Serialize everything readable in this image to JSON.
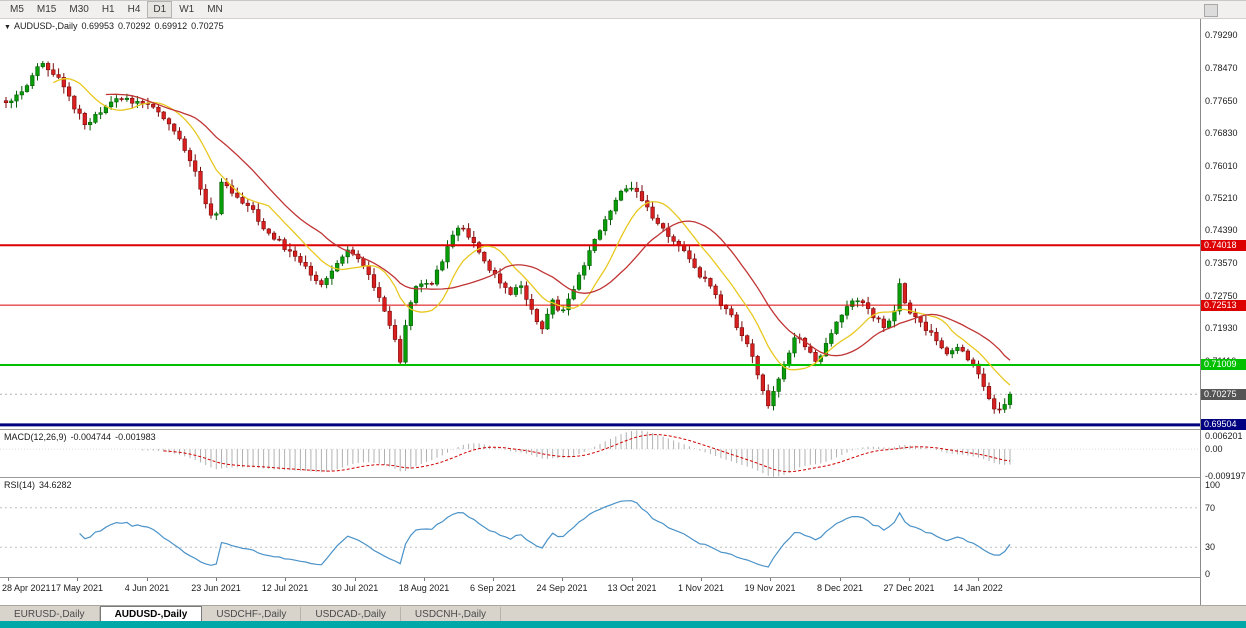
{
  "toolbar": {
    "timeframes": [
      "M5",
      "M15",
      "M30",
      "H1",
      "H4",
      "D1",
      "W1",
      "MN"
    ],
    "active_timeframe": "D1"
  },
  "header": {
    "dropdown_icon": "▼",
    "symbol": "AUDUSD-,Daily",
    "open": "0.69953",
    "high": "0.70292",
    "low": "0.69912",
    "close": "0.70275"
  },
  "indicators": {
    "macd": {
      "title": "MACD(12,26,9)",
      "value_main": "-0.004744",
      "value_signal": "-0.001983",
      "axis_labels": [
        {
          "text": "0.006201",
          "value": 0.006201
        },
        {
          "text": "0.00",
          "value": 0
        },
        {
          "text": "-0.009197",
          "value": -0.009197
        }
      ]
    },
    "rsi": {
      "title": "RSI(14)",
      "value": "34.6282",
      "axis_labels": [
        {
          "text": "100",
          "value": 100
        },
        {
          "text": "70",
          "value": 70
        },
        {
          "text": "30",
          "value": 30
        },
        {
          "text": "0",
          "value": 0
        }
      ],
      "levels": [
        70,
        30
      ]
    }
  },
  "price_axis": {
    "labels": [
      {
        "text": "0.79290",
        "value": 0.7929
      },
      {
        "text": "0.78470",
        "value": 0.7847
      },
      {
        "text": "0.77650",
        "value": 0.7765
      },
      {
        "text": "0.76830",
        "value": 0.7683
      },
      {
        "text": "0.76010",
        "value": 0.7601
      },
      {
        "text": "0.75210",
        "value": 0.7521
      },
      {
        "text": "0.74390",
        "value": 0.7439
      },
      {
        "text": "0.73570",
        "value": 0.7357
      },
      {
        "text": "0.72750",
        "value": 0.7275
      },
      {
        "text": "0.71930",
        "value": 0.7193
      },
      {
        "text": "0.71110",
        "value": 0.7111
      }
    ]
  },
  "levels": [
    {
      "label": "0.74018",
      "value": 0.74018,
      "color": "#dd0000",
      "thickness": 2
    },
    {
      "label": "0.72513",
      "value": 0.72513,
      "color": "#dd0000",
      "thickness": 1
    },
    {
      "label": "0.71009",
      "value": 0.71009,
      "color": "#00c000",
      "thickness": 2
    },
    {
      "label": "0.69504",
      "value": 0.69504,
      "color": "#000080",
      "thickness": 3
    }
  ],
  "current_price": {
    "label": "0.70275",
    "value": 0.70275,
    "tag_color": "#555555"
  },
  "x_axis": {
    "dates": [
      "28 Apr 2021",
      "17 May 2021",
      "4 Jun 2021",
      "23 Jun 2021",
      "12 Jul 2021",
      "30 Jul 2021",
      "18 Aug 2021",
      "6 Sep 2021",
      "24 Sep 2021",
      "13 Oct 2021",
      "1 Nov 2021",
      "19 Nov 2021",
      "8 Dec 2021",
      "27 Dec 2021",
      "14 Jan 2022"
    ]
  },
  "tabs": {
    "items": [
      {
        "label": "EURUSD-,Daily",
        "active": false
      },
      {
        "label": "AUDUSD-,Daily",
        "active": true
      },
      {
        "label": "USDCHF-,Daily",
        "active": false
      },
      {
        "label": "USDCAD-,Daily",
        "active": false
      },
      {
        "label": "USDCNH-,Daily",
        "active": false
      }
    ]
  },
  "chart_data": {
    "type": "candlestick",
    "symbol": "AUDUSD",
    "timeframe": "Daily",
    "title": "AUDUSD-,Daily",
    "ohlc_last": {
      "open": 0.69953,
      "high": 0.70292,
      "low": 0.69912,
      "close": 0.70275
    },
    "y_range": [
      0.694,
      0.797
    ],
    "num_candles": 192,
    "last_close": 0.70275,
    "ma_fast_period": 10,
    "ma_slow_period": 20,
    "macd_params": [
      12,
      26,
      9
    ],
    "macd_range": [
      -0.0095,
      0.0065
    ],
    "rsi_period": 14,
    "colors": {
      "up_fill": "#089c08",
      "up_stroke": "#045c04",
      "down_fill": "#d82020",
      "down_stroke": "#7a0a0a",
      "ma_fast": "#e8c820",
      "ma_slow": "#c03434",
      "macd_hist": "#b0b0b0",
      "macd_signal": "#d00000",
      "rsi_line": "#4a92c8",
      "rsi_level": "#c0c0c0",
      "bid_line": "#b0b0b0"
    },
    "price_anchors": [
      [
        0.0,
        0.776
      ],
      [
        0.012,
        0.7775
      ],
      [
        0.022,
        0.78
      ],
      [
        0.032,
        0.7858
      ],
      [
        0.042,
        0.7845
      ],
      [
        0.052,
        0.782
      ],
      [
        0.065,
        0.776
      ],
      [
        0.08,
        0.7705
      ],
      [
        0.095,
        0.7738
      ],
      [
        0.11,
        0.7772
      ],
      [
        0.125,
        0.7762
      ],
      [
        0.14,
        0.7758
      ],
      [
        0.152,
        0.7742
      ],
      [
        0.165,
        0.77
      ],
      [
        0.178,
        0.764
      ],
      [
        0.19,
        0.758
      ],
      [
        0.2,
        0.7495
      ],
      [
        0.208,
        0.7462
      ],
      [
        0.215,
        0.757
      ],
      [
        0.228,
        0.7525
      ],
      [
        0.242,
        0.75
      ],
      [
        0.256,
        0.7448
      ],
      [
        0.27,
        0.7415
      ],
      [
        0.285,
        0.7378
      ],
      [
        0.3,
        0.7342
      ],
      [
        0.315,
        0.73
      ],
      [
        0.328,
        0.7348
      ],
      [
        0.34,
        0.7392
      ],
      [
        0.352,
        0.737
      ],
      [
        0.364,
        0.731
      ],
      [
        0.376,
        0.7248
      ],
      [
        0.386,
        0.718
      ],
      [
        0.393,
        0.7108
      ],
      [
        0.4,
        0.723
      ],
      [
        0.41,
        0.7312
      ],
      [
        0.422,
        0.73
      ],
      [
        0.434,
        0.736
      ],
      [
        0.448,
        0.745
      ],
      [
        0.458,
        0.7438
      ],
      [
        0.47,
        0.7392
      ],
      [
        0.48,
        0.7342
      ],
      [
        0.492,
        0.731
      ],
      [
        0.502,
        0.7272
      ],
      [
        0.512,
        0.7305
      ],
      [
        0.524,
        0.7238
      ],
      [
        0.534,
        0.7192
      ],
      [
        0.544,
        0.7262
      ],
      [
        0.554,
        0.7232
      ],
      [
        0.566,
        0.7295
      ],
      [
        0.578,
        0.7365
      ],
      [
        0.592,
        0.7442
      ],
      [
        0.606,
        0.7512
      ],
      [
        0.618,
        0.7548
      ],
      [
        0.63,
        0.7528
      ],
      [
        0.642,
        0.7478
      ],
      [
        0.654,
        0.744
      ],
      [
        0.666,
        0.7408
      ],
      [
        0.678,
        0.7378
      ],
      [
        0.69,
        0.733
      ],
      [
        0.702,
        0.7298
      ],
      [
        0.712,
        0.7252
      ],
      [
        0.722,
        0.7225
      ],
      [
        0.732,
        0.718
      ],
      [
        0.742,
        0.7128
      ],
      [
        0.752,
        0.7045
      ],
      [
        0.76,
        0.6998
      ],
      [
        0.77,
        0.7068
      ],
      [
        0.78,
        0.7135
      ],
      [
        0.788,
        0.7185
      ],
      [
        0.798,
        0.7142
      ],
      [
        0.808,
        0.7108
      ],
      [
        0.818,
        0.7158
      ],
      [
        0.828,
        0.7212
      ],
      [
        0.838,
        0.7252
      ],
      [
        0.848,
        0.7268
      ],
      [
        0.858,
        0.7238
      ],
      [
        0.868,
        0.7215
      ],
      [
        0.876,
        0.7192
      ],
      [
        0.884,
        0.7228
      ],
      [
        0.89,
        0.7302
      ],
      [
        0.898,
        0.7242
      ],
      [
        0.908,
        0.7212
      ],
      [
        0.918,
        0.7188
      ],
      [
        0.928,
        0.7162
      ],
      [
        0.938,
        0.7132
      ],
      [
        0.948,
        0.7148
      ],
      [
        0.958,
        0.7118
      ],
      [
        0.968,
        0.7085
      ],
      [
        0.978,
        0.7022
      ],
      [
        0.986,
        0.6978
      ],
      [
        0.993,
        0.6988
      ],
      [
        1.0,
        0.70275
      ]
    ]
  }
}
